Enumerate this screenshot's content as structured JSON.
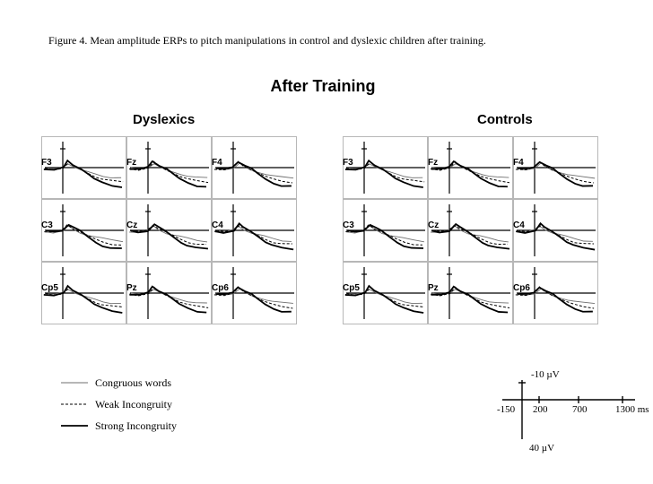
{
  "caption": "Figure 4. Mean amplitude ERPs to pitch manipulations in control and dyslexic children after training.",
  "main_title": "After Training",
  "groups": {
    "left": "Dyslexics",
    "right": "Controls"
  },
  "electrode_labels": {
    "left": [
      [
        "F3",
        "Fz",
        "F4"
      ],
      [
        "C3",
        "Cz",
        "C4"
      ],
      [
        "Cp5",
        "Pz",
        "Cp6"
      ]
    ],
    "right": [
      [
        "F3",
        "Fz",
        "F4"
      ],
      [
        "C3",
        "Cz",
        "C4"
      ],
      [
        "Cp5",
        "Pz",
        "Cp6"
      ]
    ]
  },
  "legend": {
    "items": [
      {
        "label": "Congruous words",
        "style": "thin-solid"
      },
      {
        "label": "Weak Incongruity",
        "style": "dashed"
      },
      {
        "label": "Strong Incongruity",
        "style": "thick-solid"
      }
    ]
  },
  "scale": {
    "top": "-10 µV",
    "bottom": "40 µV",
    "xticks": [
      "-150",
      "200",
      "700",
      "1300 ms"
    ]
  },
  "line_styles": {
    "thin-solid": {
      "stroke": "#6f6f6f",
      "width": 0.9,
      "dash": ""
    },
    "dashed": {
      "stroke": "#000000",
      "width": 1.0,
      "dash": "3,2"
    },
    "thick-solid": {
      "stroke": "#000000",
      "width": 1.8,
      "dash": ""
    }
  },
  "panel": {
    "width": 95,
    "height": 70,
    "baseline_x": 24,
    "baseline_y": 35,
    "y_tick_at": 14,
    "frame_color": "#888888",
    "axis_color": "#000000",
    "axis_width": 1.2
  },
  "waveforms_note": "Each panel shows 3 ERP traces descending toward positive (downward deflection) after a small early negative dip; traces diverge after ~200ms with strong-incongruity largest.",
  "waveforms": {
    "congruous": [
      [
        4,
        36
      ],
      [
        14,
        37
      ],
      [
        24,
        35
      ],
      [
        30,
        30
      ],
      [
        36,
        34
      ],
      [
        44,
        38
      ],
      [
        52,
        40
      ],
      [
        60,
        42
      ],
      [
        68,
        44
      ],
      [
        78,
        46
      ],
      [
        90,
        47
      ]
    ],
    "weak": [
      [
        4,
        36
      ],
      [
        14,
        37
      ],
      [
        24,
        35
      ],
      [
        30,
        29
      ],
      [
        36,
        33
      ],
      [
        44,
        37
      ],
      [
        52,
        41
      ],
      [
        60,
        45
      ],
      [
        68,
        48
      ],
      [
        78,
        50
      ],
      [
        90,
        51
      ]
    ],
    "strong": [
      [
        4,
        36
      ],
      [
        14,
        37
      ],
      [
        24,
        35
      ],
      [
        30,
        28
      ],
      [
        36,
        32
      ],
      [
        44,
        36
      ],
      [
        52,
        42
      ],
      [
        60,
        48
      ],
      [
        68,
        52
      ],
      [
        78,
        55
      ],
      [
        90,
        56
      ]
    ]
  }
}
